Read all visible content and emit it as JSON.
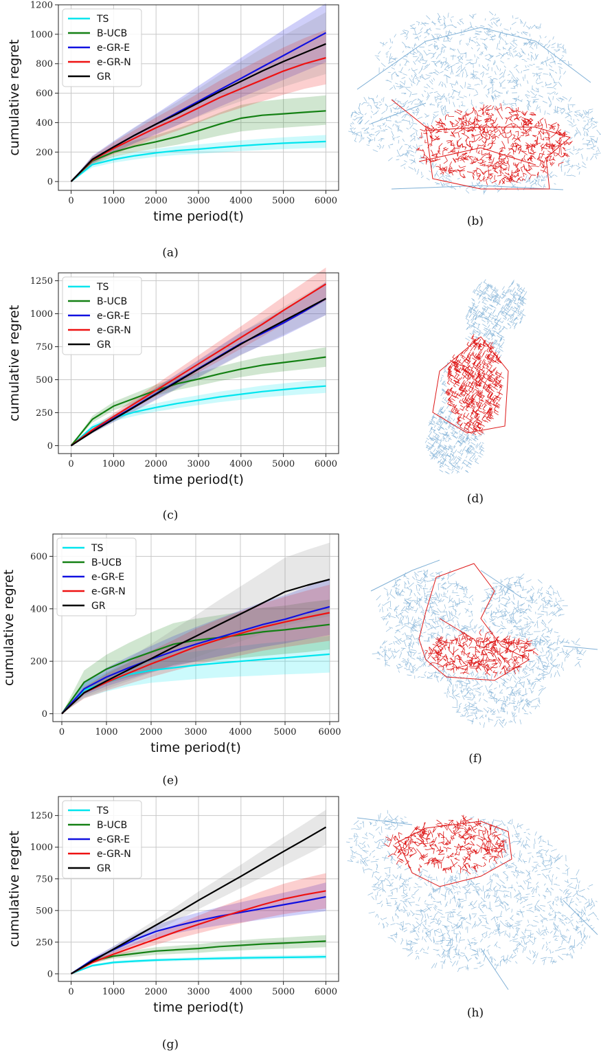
{
  "figure": {
    "captions": {
      "a": "(a)",
      "b": "(b)",
      "c": "(c)",
      "d": "(d)",
      "e": "(e)",
      "f": "(f)",
      "g": "(g)",
      "h": "(h)"
    }
  },
  "colors": {
    "TS": "#00e5ee",
    "B-UCB": "#138013",
    "e-GR-E": "#1010e0",
    "e-GR-N": "#ee1111",
    "GR": "#000000",
    "map_blue": "#7fb0d6",
    "map_red": "#dd1515",
    "grid": "#c8c8c8"
  },
  "chart_data": [
    {
      "id": "a",
      "type": "line",
      "caption": "(a)",
      "xlabel": "time period(t)",
      "ylabel": "cumulative regret",
      "xlim": [
        -300,
        6300
      ],
      "ylim": [
        -60,
        1200
      ],
      "xticks": [
        0,
        1000,
        2000,
        3000,
        4000,
        5000,
        6000
      ],
      "yticks": [
        0,
        200,
        400,
        600,
        800,
        1000,
        1200
      ],
      "grid": true,
      "legend": "top-left",
      "x": [
        0,
        500,
        1000,
        1500,
        2000,
        2500,
        3000,
        3500,
        4000,
        4500,
        5000,
        5500,
        6000
      ],
      "series": [
        {
          "name": "TS",
          "values": [
            0,
            115,
            150,
            175,
            195,
            210,
            220,
            232,
            243,
            252,
            260,
            266,
            272
          ],
          "lower": [
            0,
            95,
            128,
            150,
            168,
            180,
            188,
            198,
            207,
            214,
            220,
            225,
            228
          ],
          "upper": [
            0,
            135,
            172,
            200,
            222,
            240,
            252,
            266,
            279,
            290,
            300,
            308,
            316
          ]
        },
        {
          "name": "B-UCB",
          "values": [
            0,
            140,
            200,
            240,
            270,
            305,
            345,
            390,
            430,
            450,
            460,
            470,
            480
          ],
          "lower": [
            0,
            115,
            168,
            200,
            225,
            250,
            280,
            312,
            340,
            355,
            365,
            375,
            385
          ],
          "upper": [
            0,
            165,
            232,
            280,
            315,
            360,
            410,
            468,
            520,
            545,
            560,
            572,
            585
          ]
        },
        {
          "name": "e-GR-E",
          "values": [
            0,
            150,
            235,
            315,
            390,
            468,
            545,
            623,
            700,
            778,
            855,
            933,
            1010
          ],
          "lower": [
            0,
            125,
            195,
            260,
            320,
            382,
            445,
            508,
            570,
            630,
            690,
            750,
            810
          ],
          "upper": [
            0,
            175,
            275,
            370,
            460,
            555,
            650,
            745,
            840,
            935,
            1030,
            1120,
            1210
          ]
        },
        {
          "name": "e-GR-N",
          "values": [
            0,
            145,
            225,
            295,
            365,
            430,
            500,
            570,
            630,
            690,
            750,
            800,
            840
          ],
          "lower": [
            0,
            120,
            185,
            240,
            295,
            345,
            400,
            455,
            500,
            545,
            590,
            630,
            660
          ],
          "upper": [
            0,
            170,
            265,
            350,
            435,
            515,
            600,
            685,
            760,
            835,
            910,
            975,
            1030
          ]
        },
        {
          "name": "GR",
          "values": [
            0,
            150,
            235,
            315,
            390,
            460,
            535,
            610,
            680,
            750,
            815,
            875,
            935
          ],
          "lower": [
            0,
            130,
            200,
            265,
            325,
            383,
            440,
            495,
            545,
            595,
            643,
            688,
            730
          ],
          "upper": [
            0,
            170,
            270,
            365,
            455,
            540,
            630,
            725,
            815,
            905,
            990,
            1070,
            1150
          ]
        }
      ]
    },
    {
      "id": "c",
      "type": "line",
      "caption": "(c)",
      "xlabel": "time period(t)",
      "ylabel": "cumulative regret",
      "xlim": [
        -300,
        6300
      ],
      "ylim": [
        -60,
        1310
      ],
      "xticks": [
        0,
        1000,
        2000,
        3000,
        4000,
        5000,
        6000
      ],
      "yticks": [
        0,
        250,
        500,
        750,
        1000,
        1250
      ],
      "grid": true,
      "legend": "top-left",
      "x": [
        0,
        500,
        1000,
        1500,
        2000,
        2500,
        3000,
        3500,
        4000,
        4500,
        5000,
        5500,
        6000
      ],
      "series": [
        {
          "name": "TS",
          "values": [
            0,
            140,
            210,
            255,
            290,
            320,
            345,
            370,
            390,
            410,
            425,
            440,
            452
          ],
          "lower": [
            0,
            120,
            185,
            225,
            258,
            285,
            308,
            330,
            348,
            365,
            378,
            390,
            400
          ],
          "upper": [
            0,
            160,
            235,
            285,
            322,
            355,
            382,
            410,
            432,
            455,
            472,
            488,
            502
          ]
        },
        {
          "name": "B-UCB",
          "values": [
            0,
            200,
            300,
            360,
            420,
            470,
            505,
            545,
            580,
            610,
            630,
            650,
            672
          ],
          "lower": [
            0,
            175,
            268,
            322,
            378,
            422,
            455,
            490,
            520,
            545,
            563,
            580,
            598
          ],
          "upper": [
            0,
            225,
            332,
            398,
            462,
            518,
            555,
            600,
            640,
            675,
            697,
            720,
            746
          ]
        },
        {
          "name": "e-GR-E",
          "values": [
            0,
            110,
            205,
            300,
            395,
            490,
            585,
            680,
            775,
            850,
            930,
            1020,
            1115
          ],
          "lower": [
            0,
            95,
            180,
            265,
            350,
            435,
            520,
            605,
            690,
            760,
            830,
            910,
            990
          ],
          "upper": [
            0,
            125,
            230,
            335,
            440,
            545,
            650,
            755,
            860,
            940,
            1030,
            1130,
            1240
          ]
        },
        {
          "name": "e-GR-N",
          "values": [
            0,
            120,
            220,
            320,
            420,
            520,
            620,
            720,
            820,
            920,
            1025,
            1125,
            1225
          ],
          "lower": [
            0,
            105,
            195,
            285,
            375,
            465,
            555,
            645,
            735,
            825,
            920,
            1010,
            1100
          ],
          "upper": [
            0,
            135,
            245,
            355,
            465,
            575,
            685,
            795,
            905,
            1015,
            1130,
            1240,
            1350
          ]
        },
        {
          "name": "GR",
          "values": [
            0,
            105,
            200,
            295,
            390,
            485,
            580,
            675,
            770,
            860,
            945,
            1030,
            1115
          ],
          "lower": [
            0,
            92,
            176,
            260,
            345,
            430,
            515,
            600,
            685,
            765,
            840,
            915,
            990
          ],
          "upper": [
            0,
            118,
            224,
            330,
            435,
            540,
            645,
            750,
            855,
            955,
            1050,
            1145,
            1240
          ]
        }
      ]
    },
    {
      "id": "e",
      "type": "line",
      "caption": "(e)",
      "xlabel": "time period(t)",
      "ylabel": "cumulative regret",
      "xlim": [
        -200,
        6200
      ],
      "ylim": [
        -30,
        685
      ],
      "xticks": [
        0,
        1000,
        2000,
        3000,
        4000,
        5000,
        6000
      ],
      "yticks": [
        0,
        200,
        400,
        600
      ],
      "grid": true,
      "legend": "top-left",
      "x": [
        0,
        500,
        1000,
        1500,
        2000,
        2500,
        3000,
        3500,
        4000,
        4500,
        5000,
        5500,
        6000
      ],
      "series": [
        {
          "name": "TS",
          "values": [
            0,
            90,
            120,
            150,
            165,
            175,
            185,
            193,
            200,
            207,
            213,
            220,
            227
          ],
          "lower": [
            0,
            60,
            85,
            105,
            118,
            125,
            132,
            138,
            142,
            146,
            150,
            153,
            157
          ],
          "upper": [
            0,
            120,
            158,
            195,
            212,
            225,
            238,
            248,
            258,
            268,
            276,
            287,
            297
          ]
        },
        {
          "name": "B-UCB",
          "values": [
            0,
            120,
            170,
            205,
            235,
            265,
            280,
            290,
            300,
            312,
            320,
            330,
            340
          ],
          "lower": [
            0,
            75,
            115,
            140,
            160,
            185,
            198,
            205,
            212,
            220,
            228,
            235,
            245
          ],
          "upper": [
            0,
            165,
            225,
            270,
            310,
            345,
            362,
            375,
            388,
            404,
            412,
            425,
            435
          ]
        },
        {
          "name": "e-GR-E",
          "values": [
            0,
            95,
            140,
            175,
            208,
            238,
            265,
            290,
            315,
            340,
            360,
            385,
            408
          ],
          "lower": [
            0,
            70,
            105,
            132,
            158,
            180,
            200,
            218,
            236,
            254,
            268,
            285,
            300
          ],
          "upper": [
            0,
            120,
            175,
            218,
            258,
            296,
            330,
            362,
            394,
            426,
            452,
            485,
            516
          ]
        },
        {
          "name": "e-GR-N",
          "values": [
            0,
            80,
            120,
            155,
            190,
            222,
            255,
            282,
            306,
            330,
            350,
            368,
            385
          ],
          "lower": [
            0,
            58,
            88,
            114,
            140,
            163,
            186,
            205,
            222,
            240,
            254,
            266,
            278
          ],
          "upper": [
            0,
            102,
            152,
            196,
            240,
            281,
            324,
            359,
            390,
            420,
            446,
            470,
            492
          ]
        },
        {
          "name": "GR",
          "values": [
            0,
            80,
            125,
            168,
            210,
            253,
            295,
            338,
            380,
            422,
            465,
            490,
            512
          ],
          "lower": [
            0,
            62,
            95,
            125,
            155,
            185,
            215,
            245,
            275,
            305,
            335,
            355,
            372
          ],
          "upper": [
            0,
            98,
            155,
            211,
            265,
            321,
            375,
            431,
            485,
            539,
            595,
            625,
            652
          ]
        }
      ]
    },
    {
      "id": "g",
      "type": "line",
      "caption": "(g)",
      "xlabel": "time period(t)",
      "ylabel": "cumulative regret",
      "xlim": [
        -300,
        6300
      ],
      "ylim": [
        -60,
        1400
      ],
      "xticks": [
        0,
        1000,
        2000,
        3000,
        4000,
        5000,
        6000
      ],
      "yticks": [
        0,
        250,
        500,
        750,
        1000,
        1250
      ],
      "grid": true,
      "legend": "top-left",
      "x": [
        0,
        500,
        1000,
        1500,
        2000,
        2500,
        3000,
        3500,
        4000,
        4500,
        5000,
        5500,
        6000
      ],
      "series": [
        {
          "name": "TS",
          "values": [
            0,
            65,
            90,
            100,
            108,
            113,
            118,
            122,
            125,
            128,
            130,
            132,
            135
          ],
          "lower": [
            0,
            55,
            78,
            88,
            95,
            100,
            104,
            108,
            110,
            112,
            114,
            116,
            118
          ],
          "upper": [
            0,
            75,
            102,
            112,
            121,
            126,
            132,
            136,
            140,
            144,
            146,
            148,
            152
          ]
        },
        {
          "name": "B-UCB",
          "values": [
            0,
            100,
            140,
            160,
            180,
            190,
            200,
            215,
            225,
            235,
            242,
            250,
            258
          ],
          "lower": [
            0,
            85,
            120,
            135,
            150,
            158,
            165,
            178,
            185,
            193,
            198,
            204,
            210
          ],
          "upper": [
            0,
            115,
            160,
            185,
            210,
            222,
            235,
            252,
            265,
            277,
            286,
            296,
            306
          ]
        },
        {
          "name": "e-GR-E",
          "values": [
            0,
            110,
            190,
            270,
            335,
            380,
            420,
            455,
            485,
            515,
            545,
            575,
            608
          ],
          "lower": [
            0,
            95,
            162,
            230,
            285,
            322,
            355,
            383,
            405,
            428,
            450,
            472,
            495
          ],
          "upper": [
            0,
            125,
            218,
            310,
            385,
            438,
            485,
            527,
            565,
            602,
            640,
            678,
            721
          ]
        },
        {
          "name": "e-GR-N",
          "values": [
            0,
            90,
            155,
            215,
            275,
            335,
            390,
            445,
            495,
            545,
            590,
            625,
            655
          ],
          "lower": [
            0,
            78,
            132,
            182,
            230,
            278,
            320,
            362,
            400,
            438,
            470,
            495,
            515
          ],
          "upper": [
            0,
            102,
            178,
            248,
            320,
            392,
            460,
            528,
            590,
            652,
            710,
            755,
            795
          ]
        },
        {
          "name": "GR",
          "values": [
            0,
            100,
            195,
            290,
            385,
            480,
            580,
            675,
            770,
            868,
            965,
            1060,
            1158
          ],
          "lower": [
            0,
            88,
            172,
            256,
            340,
            424,
            510,
            594,
            678,
            764,
            850,
            934,
            1020
          ],
          "upper": [
            0,
            112,
            218,
            324,
            430,
            536,
            650,
            756,
            862,
            972,
            1080,
            1186,
            1296
          ]
        }
      ]
    }
  ]
}
